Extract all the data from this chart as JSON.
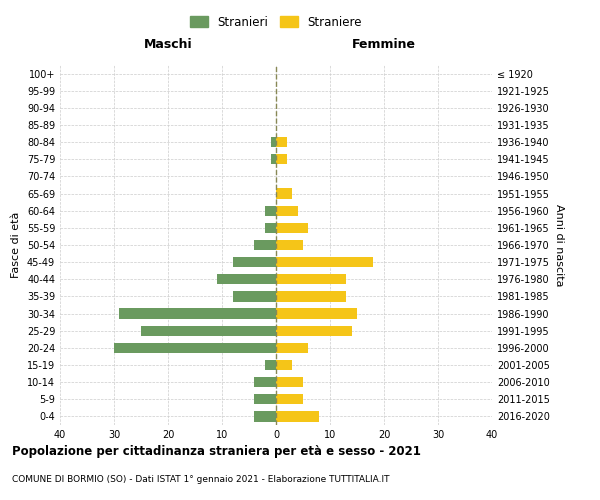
{
  "age_groups": [
    "0-4",
    "5-9",
    "10-14",
    "15-19",
    "20-24",
    "25-29",
    "30-34",
    "35-39",
    "40-44",
    "45-49",
    "50-54",
    "55-59",
    "60-64",
    "65-69",
    "70-74",
    "75-79",
    "80-84",
    "85-89",
    "90-94",
    "95-99",
    "100+"
  ],
  "birth_years": [
    "2016-2020",
    "2011-2015",
    "2006-2010",
    "2001-2005",
    "1996-2000",
    "1991-1995",
    "1986-1990",
    "1981-1985",
    "1976-1980",
    "1971-1975",
    "1966-1970",
    "1961-1965",
    "1956-1960",
    "1951-1955",
    "1946-1950",
    "1941-1945",
    "1936-1940",
    "1931-1935",
    "1926-1930",
    "1921-1925",
    "≤ 1920"
  ],
  "males": [
    4,
    4,
    4,
    2,
    30,
    25,
    29,
    8,
    11,
    8,
    4,
    2,
    2,
    0,
    0,
    1,
    1,
    0,
    0,
    0,
    0
  ],
  "females": [
    8,
    5,
    5,
    3,
    6,
    14,
    15,
    13,
    13,
    18,
    5,
    6,
    4,
    3,
    0,
    2,
    2,
    0,
    0,
    0,
    0
  ],
  "male_color": "#6a9a5f",
  "female_color": "#f5c518",
  "grid_color": "#cccccc",
  "center_line_color": "#888855",
  "title": "Popolazione per cittadinanza straniera per età e sesso - 2021",
  "subtitle": "COMUNE DI BORMIO (SO) - Dati ISTAT 1° gennaio 2021 - Elaborazione TUTTITALIA.IT",
  "xlabel_left": "Maschi",
  "xlabel_right": "Femmine",
  "ylabel_left": "Fasce di età",
  "ylabel_right": "Anni di nascita",
  "legend_male": "Stranieri",
  "legend_female": "Straniere",
  "xlim": 40,
  "background_color": "#ffffff"
}
